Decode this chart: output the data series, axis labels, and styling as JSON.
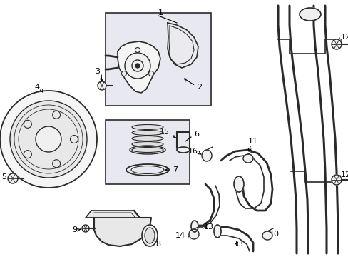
{
  "bg_color": "#ffffff",
  "line_color": "#2a2a2a",
  "box_fill": "#e8e8f0",
  "figsize": [
    4.89,
    3.6
  ],
  "dpi": 100,
  "xlim": [
    0,
    489
  ],
  "ylim": [
    0,
    360
  ]
}
